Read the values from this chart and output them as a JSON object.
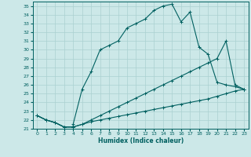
{
  "xlabel": "Humidex (Indice chaleur)",
  "xlim": [
    -0.5,
    23.5
  ],
  "ylim": [
    21,
    35.5
  ],
  "yticks": [
    21,
    22,
    23,
    24,
    25,
    26,
    27,
    28,
    29,
    30,
    31,
    32,
    33,
    34,
    35
  ],
  "xticks": [
    0,
    1,
    2,
    3,
    4,
    5,
    6,
    7,
    8,
    9,
    10,
    11,
    12,
    13,
    14,
    15,
    16,
    17,
    18,
    19,
    20,
    21,
    22,
    23
  ],
  "bg_color": "#cce8e8",
  "grid_color": "#aad0d0",
  "line_color": "#006060",
  "line1_x": [
    0,
    1,
    2,
    3,
    4,
    4,
    5,
    6,
    7,
    8,
    9,
    10,
    11,
    12,
    13,
    14,
    15,
    16,
    17,
    18,
    19,
    20,
    21,
    22,
    23
  ],
  "line1_y": [
    22.5,
    22.0,
    21.7,
    21.2,
    21.2,
    21.5,
    25.5,
    27.5,
    30.0,
    30.5,
    31.0,
    32.5,
    33.0,
    33.5,
    34.5,
    35.0,
    35.2,
    33.2,
    34.3,
    30.3,
    29.5,
    26.3,
    26.0,
    25.8,
    25.5
  ],
  "line2_x": [
    0,
    1,
    2,
    3,
    4,
    5,
    6,
    7,
    8,
    9,
    10,
    11,
    12,
    13,
    14,
    15,
    16,
    17,
    18,
    19,
    20,
    21,
    22,
    23
  ],
  "line2_y": [
    22.5,
    22.0,
    21.7,
    21.2,
    21.2,
    21.5,
    22.0,
    22.5,
    23.0,
    23.5,
    24.0,
    24.5,
    25.0,
    25.5,
    26.0,
    26.5,
    27.0,
    27.5,
    28.0,
    28.5,
    29.0,
    31.0,
    26.0,
    25.5
  ],
  "line3_x": [
    0,
    1,
    2,
    3,
    4,
    5,
    6,
    7,
    8,
    9,
    10,
    11,
    12,
    13,
    14,
    15,
    16,
    17,
    18,
    19,
    20,
    21,
    22,
    23
  ],
  "line3_y": [
    22.5,
    22.0,
    21.7,
    21.2,
    21.2,
    21.5,
    21.8,
    22.0,
    22.2,
    22.4,
    22.6,
    22.8,
    23.0,
    23.2,
    23.4,
    23.6,
    23.8,
    24.0,
    24.2,
    24.4,
    24.7,
    25.0,
    25.3,
    25.5
  ]
}
